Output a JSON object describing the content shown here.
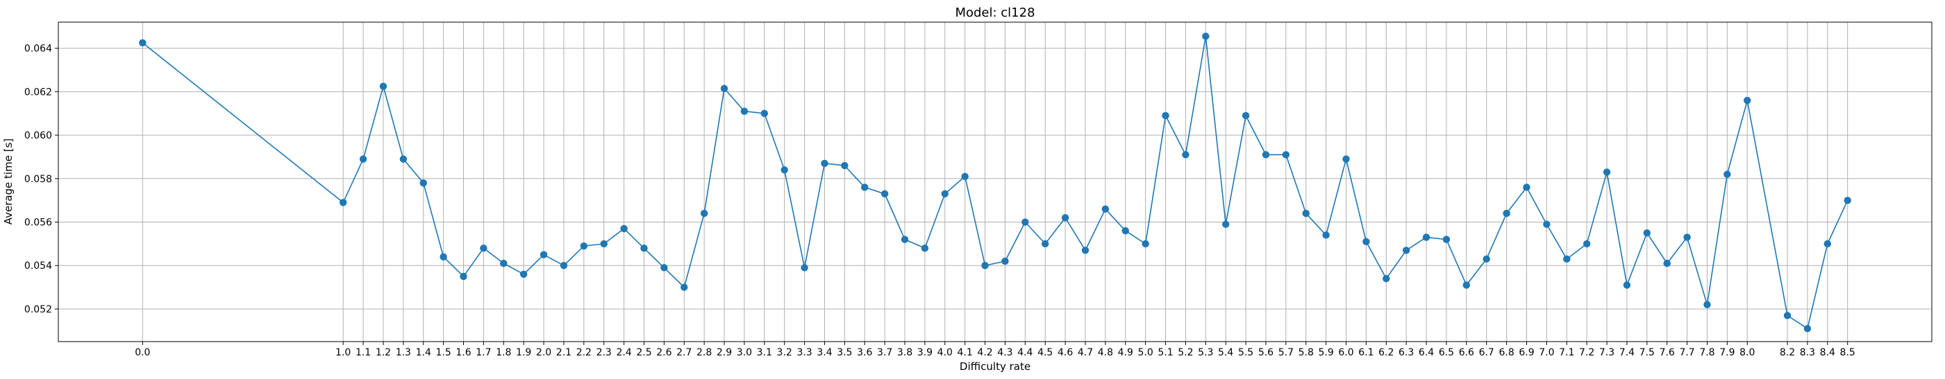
{
  "chart_data": {
    "type": "line",
    "title": "Model: cl128",
    "xlabel": "Difficulty rate",
    "ylabel": "Average time [s]",
    "xlim": [
      -0.42,
      8.92
    ],
    "ylim": [
      0.0505,
      0.0652
    ],
    "grid": true,
    "color": "#1f77b4",
    "marker": "circle",
    "x_ticks": [
      0.0,
      1.0,
      1.1,
      1.2,
      1.3,
      1.4,
      1.5,
      1.6,
      1.7,
      1.8,
      1.9,
      2.0,
      2.1,
      2.2,
      2.3,
      2.4,
      2.5,
      2.6,
      2.7,
      2.8,
      2.9,
      3.0,
      3.1,
      3.2,
      3.3,
      3.4,
      3.5,
      3.6,
      3.7,
      3.8,
      3.9,
      4.0,
      4.1,
      4.2,
      4.3,
      4.4,
      4.5,
      4.6,
      4.7,
      4.8,
      4.9,
      5.0,
      5.1,
      5.2,
      5.3,
      5.4,
      5.5,
      5.6,
      5.7,
      5.8,
      5.9,
      6.0,
      6.1,
      6.2,
      6.3,
      6.4,
      6.5,
      6.6,
      6.7,
      6.8,
      6.9,
      7.0,
      7.1,
      7.2,
      7.3,
      7.4,
      7.5,
      7.6,
      7.7,
      7.8,
      7.9,
      8.0,
      8.2,
      8.3,
      8.4,
      8.5
    ],
    "x_tick_labels": [
      "0.0",
      "1.0",
      "1.1",
      "1.2",
      "1.3",
      "1.4",
      "1.5",
      "1.6",
      "1.7",
      "1.8",
      "1.9",
      "2.0",
      "2.1",
      "2.2",
      "2.3",
      "2.4",
      "2.5",
      "2.6",
      "2.7",
      "2.8",
      "2.9",
      "3.0",
      "3.1",
      "3.2",
      "3.3",
      "3.4",
      "3.5",
      "3.6",
      "3.7",
      "3.8",
      "3.9",
      "4.0",
      "4.1",
      "4.2",
      "4.3",
      "4.4",
      "4.5",
      "4.6",
      "4.7",
      "4.8",
      "4.9",
      "5.0",
      "5.1",
      "5.2",
      "5.3",
      "5.4",
      "5.5",
      "5.6",
      "5.7",
      "5.8",
      "5.9",
      "6.0",
      "6.1",
      "6.2",
      "6.3",
      "6.4",
      "6.5",
      "6.6",
      "6.7",
      "6.8",
      "6.9",
      "7.0",
      "7.1",
      "7.2",
      "7.3",
      "7.4",
      "7.5",
      "7.6",
      "7.7",
      "7.8",
      "7.9",
      "8.0",
      "8.2",
      "8.3",
      "8.4",
      "8.5"
    ],
    "y_ticks": [
      0.052,
      0.054,
      0.056,
      0.058,
      0.06,
      0.062,
      0.064
    ],
    "y_tick_labels": [
      "0.052",
      "0.054",
      "0.056",
      "0.058",
      "0.060",
      "0.062",
      "0.064"
    ],
    "x": [
      0.0,
      1.0,
      1.1,
      1.2,
      1.3,
      1.4,
      1.5,
      1.6,
      1.7,
      1.8,
      1.9,
      2.0,
      2.1,
      2.2,
      2.3,
      2.4,
      2.5,
      2.6,
      2.7,
      2.8,
      2.9,
      3.0,
      3.1,
      3.2,
      3.3,
      3.4,
      3.5,
      3.6,
      3.7,
      3.8,
      3.9,
      4.0,
      4.1,
      4.2,
      4.3,
      4.4,
      4.5,
      4.6,
      4.7,
      4.8,
      4.9,
      5.0,
      5.1,
      5.2,
      5.3,
      5.4,
      5.5,
      5.6,
      5.7,
      5.8,
      5.9,
      6.0,
      6.1,
      6.2,
      6.3,
      6.4,
      6.5,
      6.6,
      6.7,
      6.8,
      6.9,
      7.0,
      7.1,
      7.2,
      7.3,
      7.4,
      7.5,
      7.6,
      7.7,
      7.8,
      7.9,
      8.0,
      8.2,
      8.3,
      8.4,
      8.5
    ],
    "y": [
      0.06425,
      0.0569,
      0.0589,
      0.06225,
      0.0589,
      0.0578,
      0.0544,
      0.0535,
      0.0548,
      0.0541,
      0.0536,
      0.0545,
      0.054,
      0.0549,
      0.055,
      0.0557,
      0.0548,
      0.0539,
      0.053,
      0.0564,
      0.06215,
      0.0611,
      0.061,
      0.0584,
      0.0539,
      0.0587,
      0.0586,
      0.0576,
      0.0573,
      0.0552,
      0.0548,
      0.0573,
      0.0581,
      0.054,
      0.0542,
      0.056,
      0.055,
      0.0562,
      0.0547,
      0.0566,
      0.0556,
      0.055,
      0.0609,
      0.0591,
      0.06455,
      0.0559,
      0.0609,
      0.0591,
      0.0591,
      0.0564,
      0.0554,
      0.0589,
      0.0551,
      0.0534,
      0.0547,
      0.0553,
      0.0552,
      0.0531,
      0.0543,
      0.0564,
      0.0576,
      0.0559,
      0.0543,
      0.055,
      0.0583,
      0.0531,
      0.0555,
      0.0541,
      0.0553,
      0.0522,
      0.0582,
      0.0616,
      0.0517,
      0.0511,
      0.055,
      0.057
    ]
  }
}
